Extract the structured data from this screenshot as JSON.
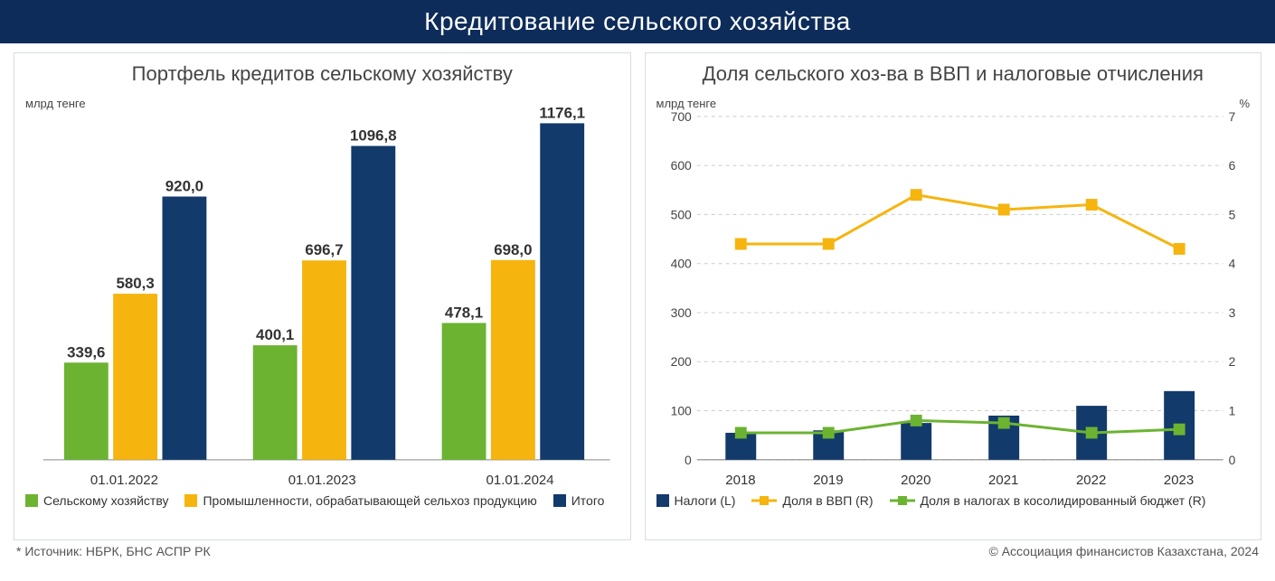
{
  "page_title": "Кредитование сельского хозяйства",
  "footer": {
    "source": "* Источник: НБРК, БНС АСПР РК",
    "copyright": "© Ассоциация финансистов Казахстана, 2024"
  },
  "left_chart": {
    "type": "grouped-bar",
    "title": "Портфель кредитов сельскому хозяйству",
    "yaxis_label": "млрд тенге",
    "categories": [
      "01.01.2022",
      "01.01.2023",
      "01.01.2024"
    ],
    "series": [
      {
        "name": "Сельскому хозяйству",
        "color": "#6cb332",
        "values": [
          339.6,
          400.1,
          478.1
        ],
        "labels": [
          "339,6",
          "400,1",
          "478,1"
        ]
      },
      {
        "name": "Промышленности, обрабатывающей сельхоз продукцию",
        "color": "#f6b40f",
        "values": [
          580.3,
          696.7,
          698.0
        ],
        "labels": [
          "580,3",
          "696,7",
          "698,0"
        ]
      },
      {
        "name": "Итого",
        "color": "#123a6a",
        "values": [
          920.0,
          1096.8,
          1176.1
        ],
        "labels": [
          "920,0",
          "1096,8",
          "1176,1"
        ]
      }
    ],
    "ylim": [
      0,
      1200
    ],
    "label_fontsize": 17,
    "label_color": "#333333",
    "label_weight": "bold",
    "bar_width_ratio": 0.26,
    "axis_color": "#888888",
    "background_color": "#ffffff"
  },
  "right_chart": {
    "type": "combo-bar-line",
    "title": "Доля сельского хоз-ва в ВВП и налоговые отчисления",
    "yaxis_left_label": "млрд тенге",
    "yaxis_right_label": "%",
    "categories": [
      "2018",
      "2019",
      "2020",
      "2021",
      "2022",
      "2023"
    ],
    "left_ylim": [
      0,
      700
    ],
    "left_ytick_step": 100,
    "right_ylim": [
      0,
      7
    ],
    "right_ytick_step": 1,
    "grid_color": "#cccccc",
    "axis_color": "#888888",
    "background_color": "#ffffff",
    "bar_series": {
      "name": "Налоги (L)",
      "color": "#123a6a",
      "values": [
        55,
        60,
        75,
        90,
        110,
        140
      ],
      "bar_width_ratio": 0.35
    },
    "line_series": [
      {
        "name": "Доля в ВВП (R)",
        "color": "#f6b40f",
        "marker": "square",
        "marker_size": 12,
        "line_width": 3,
        "values": [
          4.4,
          4.4,
          5.4,
          5.1,
          5.2,
          4.3
        ]
      },
      {
        "name": "Доля в налогах в косолидированный бюджет (R)",
        "color": "#6cb332",
        "marker": "square",
        "marker_size": 12,
        "line_width": 3,
        "values": [
          0.55,
          0.55,
          0.8,
          0.75,
          0.55,
          0.62
        ]
      }
    ]
  }
}
